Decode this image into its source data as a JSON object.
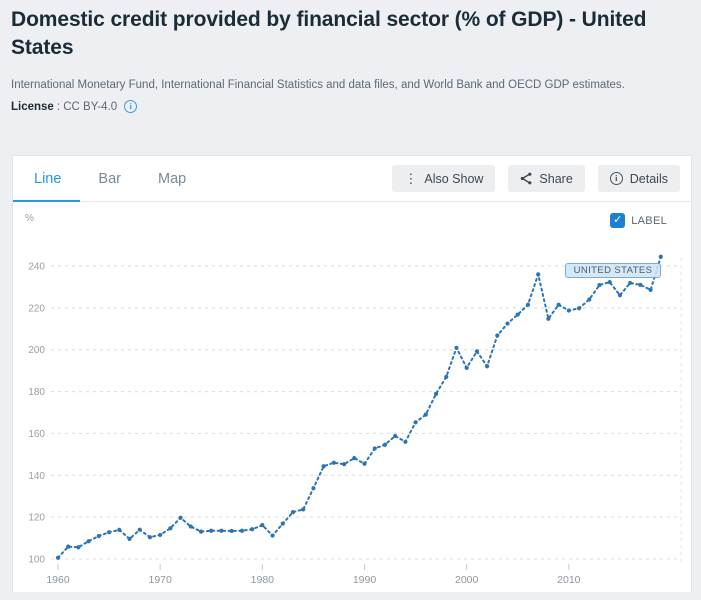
{
  "header": {
    "title": "Domestic credit provided by financial sector (% of GDP) - United States",
    "source": "International Monetary Fund, International Financial Statistics and data files, and World Bank and OECD GDP estimates.",
    "license_label": "License",
    "license_value": ": CC BY-4.0"
  },
  "tabs": [
    {
      "label": "Line",
      "active": true
    },
    {
      "label": "Bar",
      "active": false
    },
    {
      "label": "Map",
      "active": false
    }
  ],
  "toolbar": {
    "also_show": "Also Show",
    "share": "Share",
    "details": "Details"
  },
  "icons": {
    "also_show": "kebab-vertical-icon",
    "share": "share-nodes-icon",
    "details": "info-circle-icon",
    "license": "info-circle-icon",
    "label_checkbox": "checkmark-icon"
  },
  "chart": {
    "unit_label": "%",
    "label_checkbox": {
      "label": "LABEL",
      "checked": true
    },
    "series_badge": "UNITED STATES",
    "colors": {
      "line": "#2d74b3",
      "tab_active": "#2898d9",
      "checkbox": "#1d80d1",
      "badge_bg": "#cee4f7",
      "badge_border": "#7aa8d0",
      "grid": "#d8dbde",
      "axis_text": "#98a0a7"
    }
  },
  "chart_data": {
    "type": "line",
    "title": "Domestic credit provided by financial sector (% of GDP) - United States",
    "series_name": "United States",
    "ylabel": "%",
    "xlabel": "",
    "ylim": [
      95,
      250
    ],
    "yticks": [
      100,
      120,
      140,
      160,
      180,
      200,
      220,
      240
    ],
    "xticks": [
      1960,
      1970,
      1980,
      1990,
      2000,
      2010
    ],
    "grid": "horizontal-dashed",
    "line_style": "dotted-with-markers",
    "legend_position": "badge-on-line",
    "x": [
      1960,
      1961,
      1962,
      1963,
      1964,
      1965,
      1966,
      1967,
      1968,
      1969,
      1970,
      1971,
      1972,
      1973,
      1974,
      1975,
      1976,
      1977,
      1978,
      1979,
      1980,
      1981,
      1982,
      1983,
      1984,
      1985,
      1986,
      1987,
      1988,
      1989,
      1990,
      1991,
      1992,
      1993,
      1994,
      1995,
      1996,
      1997,
      1998,
      1999,
      2000,
      2001,
      2002,
      2003,
      2004,
      2005,
      2006,
      2007,
      2008,
      2009,
      2010,
      2011,
      2012,
      2013,
      2014,
      2015,
      2016,
      2017,
      2018,
      2019
    ],
    "values": [
      100.6,
      105.9,
      105.6,
      108.5,
      111.0,
      112.8,
      113.9,
      109.6,
      114.0,
      110.4,
      111.5,
      114.7,
      119.7,
      115.5,
      113.1,
      113.5,
      113.5,
      113.4,
      113.5,
      114.2,
      116.2,
      111.2,
      116.9,
      122.4,
      123.7,
      133.8,
      144.3,
      146.0,
      145.3,
      148.2,
      145.5,
      152.8,
      154.6,
      158.8,
      156.0,
      165.3,
      169.0,
      178.9,
      187.0,
      200.9,
      191.3,
      199.2,
      192.1,
      206.8,
      212.5,
      216.8,
      221.5,
      236.0,
      214.8,
      221.5,
      218.7,
      219.8,
      224.0,
      230.9,
      232.3,
      226.0,
      231.9,
      231.0,
      228.6,
      244.4
    ]
  }
}
